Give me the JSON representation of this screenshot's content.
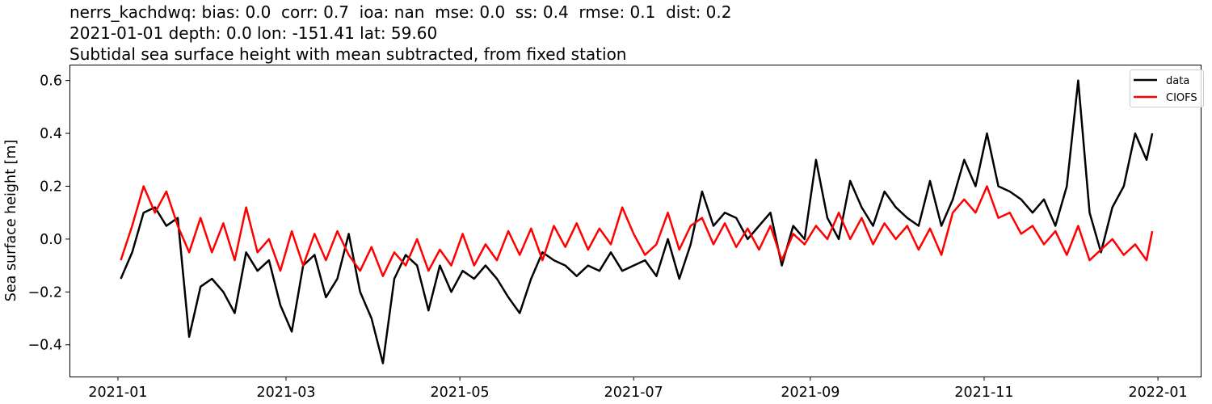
{
  "chart_data": {
    "type": "line",
    "title_lines": [
      "nerrs_kachdwq: bias: 0.0  corr: 0.7  ioa: nan  mse: 0.0  ss: 0.4  rmse: 0.1  dist: 0.2",
      "2021-01-01 depth: 0.0 lon: -151.41 lat: 59.60",
      "Subtidal sea surface height with mean subtracted, from fixed station"
    ],
    "xlabel": "",
    "ylabel": "Sea surface height [m]",
    "xlim": [
      "2020-12-15",
      "2022-01-16"
    ],
    "ylim": [
      -0.52,
      0.66
    ],
    "xticks": [
      "2021-01",
      "2021-03",
      "2021-05",
      "2021-07",
      "2021-09",
      "2021-11",
      "2022-01"
    ],
    "yticks": [
      0.6,
      0.4,
      0.2,
      0.0,
      -0.2,
      -0.4
    ],
    "ytick_labels": [
      "0.6",
      "0.4",
      "0.2",
      "0.0",
      "−0.2",
      "−0.4"
    ],
    "grid": false,
    "legend_position": "top-right",
    "x": [
      "2021-01-02",
      "2021-01-06",
      "2021-01-10",
      "2021-01-14",
      "2021-01-18",
      "2021-01-22",
      "2021-01-26",
      "2021-01-30",
      "2021-02-03",
      "2021-02-07",
      "2021-02-11",
      "2021-02-15",
      "2021-02-19",
      "2021-02-23",
      "2021-02-27",
      "2021-03-03",
      "2021-03-07",
      "2021-03-11",
      "2021-03-15",
      "2021-03-19",
      "2021-03-23",
      "2021-03-27",
      "2021-03-31",
      "2021-04-04",
      "2021-04-08",
      "2021-04-12",
      "2021-04-16",
      "2021-04-20",
      "2021-04-24",
      "2021-04-28",
      "2021-05-02",
      "2021-05-06",
      "2021-05-10",
      "2021-05-14",
      "2021-05-18",
      "2021-05-22",
      "2021-05-26",
      "2021-05-30",
      "2021-06-03",
      "2021-06-07",
      "2021-06-11",
      "2021-06-15",
      "2021-06-19",
      "2021-06-23",
      "2021-06-27",
      "2021-07-01",
      "2021-07-05",
      "2021-07-09",
      "2021-07-13",
      "2021-07-17",
      "2021-07-21",
      "2021-07-25",
      "2021-07-29",
      "2021-08-02",
      "2021-08-06",
      "2021-08-10",
      "2021-08-14",
      "2021-08-18",
      "2021-08-22",
      "2021-08-26",
      "2021-08-30",
      "2021-09-03",
      "2021-09-07",
      "2021-09-11",
      "2021-09-15",
      "2021-09-19",
      "2021-09-23",
      "2021-09-27",
      "2021-10-01",
      "2021-10-05",
      "2021-10-09",
      "2021-10-13",
      "2021-10-17",
      "2021-10-21",
      "2021-10-25",
      "2021-10-29",
      "2021-11-02",
      "2021-11-06",
      "2021-11-10",
      "2021-11-14",
      "2021-11-18",
      "2021-11-22",
      "2021-11-26",
      "2021-11-30",
      "2021-12-04",
      "2021-12-08",
      "2021-12-12",
      "2021-12-16",
      "2021-12-20",
      "2021-12-24",
      "2021-12-28",
      "2021-12-30"
    ],
    "series": [
      {
        "name": "data",
        "color": "#000000",
        "values": [
          -0.15,
          -0.05,
          0.1,
          0.12,
          0.05,
          0.08,
          -0.37,
          -0.18,
          -0.15,
          -0.2,
          -0.28,
          -0.05,
          -0.12,
          -0.08,
          -0.25,
          -0.35,
          -0.1,
          -0.06,
          -0.22,
          -0.15,
          0.02,
          -0.2,
          -0.3,
          -0.47,
          -0.15,
          -0.06,
          -0.1,
          -0.27,
          -0.1,
          -0.2,
          -0.12,
          -0.15,
          -0.1,
          -0.15,
          -0.22,
          -0.28,
          -0.15,
          -0.05,
          -0.08,
          -0.1,
          -0.14,
          -0.1,
          -0.12,
          -0.05,
          -0.12,
          -0.1,
          -0.08,
          -0.14,
          0.0,
          -0.15,
          -0.02,
          0.18,
          0.05,
          0.1,
          0.08,
          0.0,
          0.05,
          0.1,
          -0.1,
          0.05,
          0.0,
          0.3,
          0.08,
          0.0,
          0.22,
          0.12,
          0.05,
          0.18,
          0.12,
          0.08,
          0.05,
          0.22,
          0.05,
          0.15,
          0.3,
          0.2,
          0.4,
          0.2,
          0.18,
          0.15,
          0.1,
          0.15,
          0.05,
          0.2,
          0.6,
          0.1,
          -0.05,
          0.12,
          0.2,
          0.4,
          0.3,
          0.4
        ]
      },
      {
        "name": "CIOFS",
        "color": "#ff0000",
        "values": [
          -0.08,
          0.05,
          0.2,
          0.1,
          0.18,
          0.05,
          -0.05,
          0.08,
          -0.05,
          0.06,
          -0.08,
          0.12,
          -0.05,
          0.0,
          -0.12,
          0.03,
          -0.1,
          0.02,
          -0.08,
          0.03,
          -0.06,
          -0.12,
          -0.03,
          -0.14,
          -0.05,
          -0.1,
          0.0,
          -0.12,
          -0.04,
          -0.1,
          0.02,
          -0.1,
          -0.02,
          -0.08,
          0.03,
          -0.06,
          0.04,
          -0.08,
          0.05,
          -0.03,
          0.06,
          -0.04,
          0.04,
          -0.02,
          0.12,
          0.02,
          -0.06,
          -0.02,
          0.1,
          -0.04,
          0.05,
          0.08,
          -0.02,
          0.06,
          -0.03,
          0.04,
          -0.04,
          0.05,
          -0.08,
          0.02,
          -0.02,
          0.05,
          0.0,
          0.1,
          0.0,
          0.08,
          -0.02,
          0.06,
          0.0,
          0.05,
          -0.04,
          0.04,
          -0.06,
          0.1,
          0.15,
          0.1,
          0.2,
          0.08,
          0.1,
          0.02,
          0.05,
          -0.02,
          0.03,
          -0.06,
          0.05,
          -0.08,
          -0.04,
          0.0,
          -0.06,
          -0.02,
          -0.08,
          0.03
        ]
      }
    ]
  }
}
